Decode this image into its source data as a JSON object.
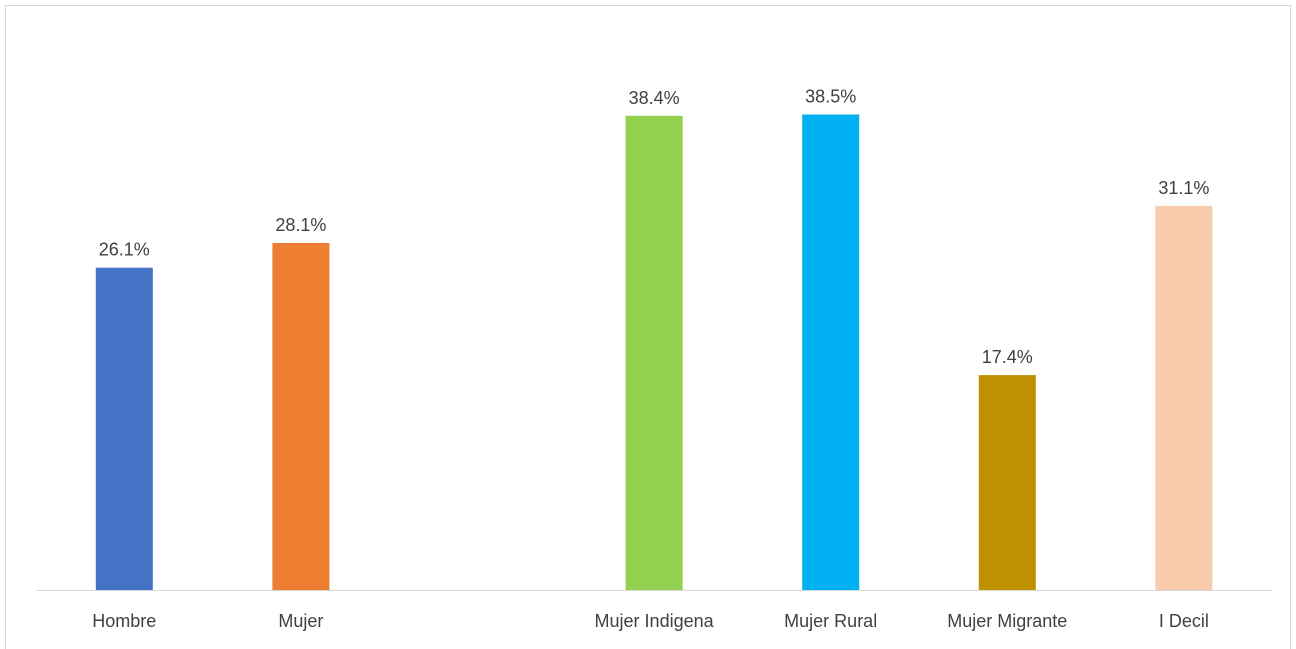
{
  "chart_data": {
    "type": "bar",
    "categories": [
      "Hombre",
      "Mujer",
      "",
      "Mujer Indigena",
      "Mujer Rural",
      "Mujer Migrante",
      "I Decil"
    ],
    "values": [
      26.1,
      28.1,
      null,
      38.4,
      38.5,
      17.4,
      31.1
    ],
    "value_labels": [
      "26.1%",
      "28.1%",
      "",
      "38.4%",
      "38.5%",
      "17.4%",
      "31.1%"
    ],
    "colors": [
      "#4472c4",
      "#ed7d31",
      "",
      "#92d050",
      "#00b0f0",
      "#bf9000",
      "#f8cbad"
    ],
    "title": "",
    "xlabel": "",
    "ylabel": "",
    "ylim": [
      0,
      45
    ],
    "grid": false,
    "legend": "none",
    "axis_line_color": "#d9d9d9"
  }
}
